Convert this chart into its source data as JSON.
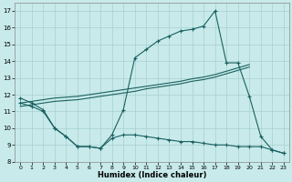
{
  "xlabel": "Humidex (Indice chaleur)",
  "background_color": "#c8eaea",
  "grid_color": "#a8d0d0",
  "line_color": "#1a6060",
  "xlim": [
    -0.5,
    23.5
  ],
  "ylim": [
    8,
    17.5
  ],
  "yticks": [
    8,
    9,
    10,
    11,
    12,
    13,
    14,
    15,
    16,
    17
  ],
  "xticks": [
    0,
    1,
    2,
    3,
    4,
    5,
    6,
    7,
    8,
    9,
    10,
    11,
    12,
    13,
    14,
    15,
    16,
    17,
    18,
    19,
    20,
    21,
    22,
    23
  ],
  "series_main": {
    "x": [
      0,
      1,
      2,
      3,
      4,
      5,
      6,
      7,
      8,
      9,
      10,
      11,
      12,
      13,
      14,
      15,
      16,
      17,
      18,
      19,
      20,
      21,
      22,
      23
    ],
    "y": [
      11.8,
      11.5,
      11.1,
      10.0,
      9.5,
      8.9,
      8.9,
      8.8,
      9.6,
      11.1,
      14.2,
      14.7,
      15.2,
      15.5,
      15.8,
      15.9,
      16.1,
      17.0,
      13.9,
      13.9,
      11.9,
      9.5,
      8.7,
      8.5
    ]
  },
  "series_upper_trend": {
    "x": [
      0,
      1,
      2,
      3,
      4,
      5,
      6,
      7,
      8,
      9,
      10,
      11,
      12,
      13,
      14,
      15,
      16,
      17,
      18,
      19,
      20
    ],
    "y": [
      11.5,
      11.6,
      11.7,
      11.8,
      11.85,
      11.9,
      12.0,
      12.1,
      12.2,
      12.3,
      12.4,
      12.5,
      12.6,
      12.7,
      12.8,
      12.95,
      13.05,
      13.2,
      13.4,
      13.6,
      13.8
    ]
  },
  "series_lower_trend": {
    "x": [
      0,
      1,
      2,
      3,
      4,
      5,
      6,
      7,
      8,
      9,
      10,
      11,
      12,
      13,
      14,
      15,
      16,
      17,
      18,
      19,
      20
    ],
    "y": [
      11.3,
      11.4,
      11.5,
      11.6,
      11.65,
      11.7,
      11.8,
      11.9,
      12.0,
      12.1,
      12.2,
      12.35,
      12.45,
      12.55,
      12.65,
      12.8,
      12.9,
      13.05,
      13.25,
      13.45,
      13.65
    ]
  },
  "series_bottom": {
    "x": [
      0,
      1,
      2,
      3,
      4,
      5,
      6,
      7,
      8,
      9,
      10,
      11,
      12,
      13,
      14,
      15,
      16,
      17,
      18,
      19,
      20,
      21,
      22,
      23
    ],
    "y": [
      11.5,
      11.3,
      11.0,
      10.0,
      9.5,
      8.9,
      8.9,
      8.8,
      9.4,
      9.6,
      9.6,
      9.5,
      9.4,
      9.3,
      9.2,
      9.2,
      9.1,
      9.0,
      9.0,
      8.9,
      8.9,
      8.9,
      8.7,
      8.5
    ]
  }
}
